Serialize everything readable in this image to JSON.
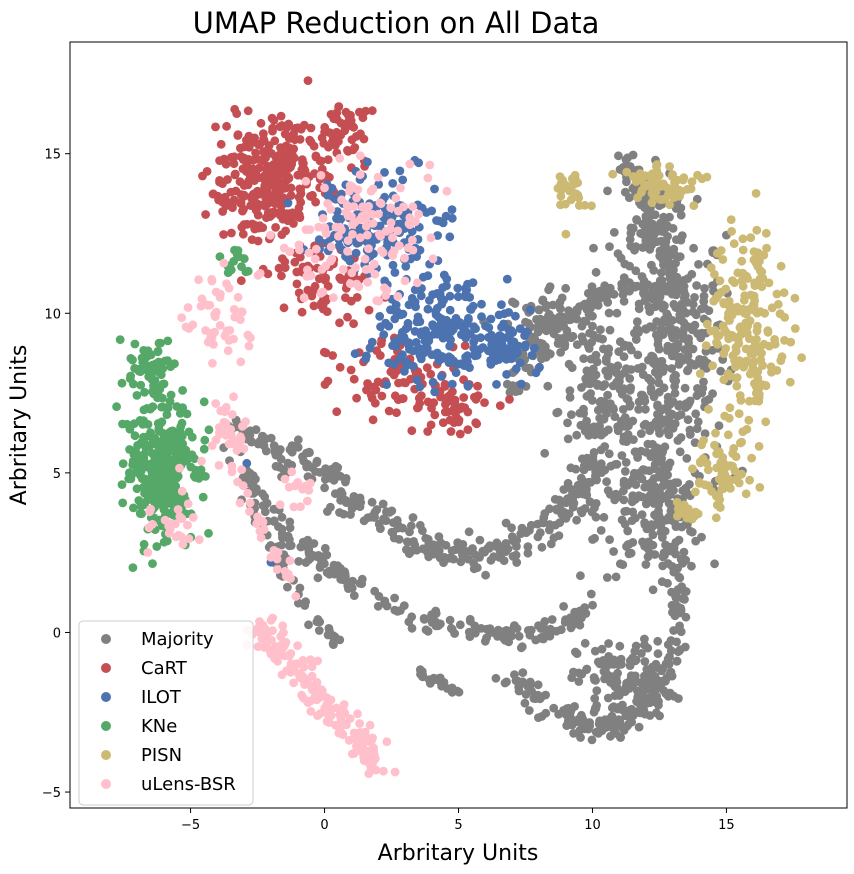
{
  "chart_data": {
    "type": "scatter",
    "title": "UMAP Reduction on All Data",
    "xlabel": "Arbritary Units",
    "ylabel": "Arbritary Units",
    "xlim": [
      -9.5,
      19.5
    ],
    "ylim": [
      -5.5,
      18.5
    ],
    "xticks": [
      -5,
      0,
      5,
      10,
      15
    ],
    "yticks": [
      -5,
      0,
      5,
      10,
      15
    ],
    "xtick_labels": [
      "−5",
      "0",
      "5",
      "10",
      "15"
    ],
    "ytick_labels": [
      "−5",
      "0",
      "5",
      "10",
      "15"
    ],
    "grid": false,
    "legend_position": "lower-left",
    "series": [
      {
        "name": "Majority",
        "color": "#808080",
        "clusters": [
          {
            "center": [
              13.2,
              9.0
            ],
            "spread": [
              1.6,
              3.6
            ],
            "count": 260
          },
          {
            "center": [
              10.4,
              7.0
            ],
            "spread": [
              1.5,
              2.8
            ],
            "count": 180
          },
          {
            "center": [
              12.2,
              4.0
            ],
            "spread": [
              1.8,
              2.0
            ],
            "count": 160
          },
          {
            "center": [
              8.5,
              9.6
            ],
            "spread": [
              1.6,
              1.2
            ],
            "count": 90
          },
          {
            "center": [
              12.0,
              13.0
            ],
            "spread": [
              1.0,
              1.4
            ],
            "count": 80
          },
          {
            "center": [
              11.2,
              -1.5
            ],
            "spread": [
              1.6,
              1.1
            ],
            "count": 120
          }
        ],
        "arcs": [
          {
            "points": [
              [
                -3.5,
                6.5
              ],
              [
                -1.5,
                5.6
              ],
              [
                1.0,
                4.2
              ],
              [
                3.5,
                2.7
              ],
              [
                6.0,
                2.4
              ],
              [
                8.5,
                3.5
              ],
              [
                10.2,
                5.0
              ]
            ],
            "width": 0.55,
            "count": 300
          },
          {
            "points": [
              [
                -3.0,
                5.0
              ],
              [
                -1.5,
                3.0
              ],
              [
                0.5,
                1.8
              ],
              [
                3.0,
                0.6
              ],
              [
                5.5,
                0.0
              ],
              [
                8.0,
                -0.1
              ],
              [
                10.0,
                0.7
              ]
            ],
            "width": 0.35,
            "count": 200
          },
          {
            "points": [
              [
                -2.8,
                4.0
              ],
              [
                -1.5,
                2.0
              ],
              [
                -0.5,
                0.4
              ],
              [
                0.5,
                -0.3
              ]
            ],
            "width": 0.25,
            "count": 50
          },
          {
            "points": [
              [
                3.5,
                -1.3
              ],
              [
                5.0,
                -1.8
              ]
            ],
            "width": 0.15,
            "count": 25
          },
          {
            "points": [
              [
                6.5,
                -1.2
              ],
              [
                8.5,
                -2.3
              ],
              [
                10.0,
                -3.0
              ],
              [
                11.5,
                -2.6
              ],
              [
                12.8,
                -1.5
              ],
              [
                13.3,
                0.5
              ],
              [
                13.0,
                3.0
              ],
              [
                12.5,
                5.0
              ],
              [
                12.5,
                8.0
              ],
              [
                13.0,
                11.0
              ],
              [
                12.0,
                13.5
              ],
              [
                11.2,
                15.0
              ]
            ],
            "width": 0.45,
            "count": 350
          },
          {
            "points": [
              [
                7.0,
                7.5
              ],
              [
                8.5,
                9.5
              ],
              [
                10.0,
                10.6
              ],
              [
                11.5,
                10.8
              ],
              [
                12.5,
                10.3
              ]
            ],
            "width": 0.35,
            "count": 100
          }
        ]
      },
      {
        "name": "CaRT",
        "color": "#c44e52",
        "clusters": [
          {
            "center": [
              -2.0,
              14.2
            ],
            "spread": [
              1.8,
              1.7
            ],
            "count": 300
          },
          {
            "center": [
              0.5,
              15.8
            ],
            "spread": [
              1.0,
              0.9
            ],
            "count": 50
          },
          {
            "center": [
              3.0,
              8.0
            ],
            "spread": [
              2.4,
              1.2
            ],
            "count": 90
          },
          {
            "center": [
              4.8,
              7.0
            ],
            "spread": [
              1.6,
              0.8
            ],
            "count": 40
          },
          {
            "center": [
              -0.2,
              11.2
            ],
            "spread": [
              1.6,
              1.2
            ],
            "count": 70
          }
        ]
      },
      {
        "name": "ILOT",
        "color": "#4c72b0",
        "clusters": [
          {
            "center": [
              2.0,
              12.8
            ],
            "spread": [
              2.2,
              1.3
            ],
            "count": 180
          },
          {
            "center": [
              4.2,
              9.5
            ],
            "spread": [
              2.1,
              1.5
            ],
            "count": 190
          },
          {
            "center": [
              6.6,
              9.0
            ],
            "spread": [
              1.0,
              0.8
            ],
            "count": 70
          }
        ],
        "points": [
          [
            -2.9,
            5.3
          ],
          [
            -2.0,
            2.2
          ]
        ]
      },
      {
        "name": "KNe",
        "color": "#55a868",
        "clusters": [
          {
            "center": [
              -6.0,
              5.0
            ],
            "spread": [
              1.1,
              1.9
            ],
            "count": 330
          },
          {
            "center": [
              -6.5,
              8.2
            ],
            "spread": [
              0.9,
              0.9
            ],
            "count": 60
          },
          {
            "center": [
              -3.2,
              11.6
            ],
            "spread": [
              0.5,
              0.4
            ],
            "count": 15
          }
        ]
      },
      {
        "name": "PISN",
        "color": "#ccb974",
        "clusters": [
          {
            "center": [
              15.8,
              9.5
            ],
            "spread": [
              1.3,
              2.9
            ],
            "count": 200
          },
          {
            "center": [
              14.8,
              5.0
            ],
            "spread": [
              0.9,
              1.0
            ],
            "count": 60
          },
          {
            "center": [
              13.5,
              3.8
            ],
            "spread": [
              0.5,
              0.4
            ],
            "count": 15
          },
          {
            "center": [
              12.5,
              14.0
            ],
            "spread": [
              1.2,
              0.6
            ],
            "count": 60
          },
          {
            "center": [
              9.2,
              13.8
            ],
            "spread": [
              0.6,
              0.5
            ],
            "count": 25
          }
        ]
      },
      {
        "name": "uLens-BSR",
        "color": "#ffc0cb",
        "clusters": [
          {
            "center": [
              1.5,
              12.5
            ],
            "spread": [
              2.2,
              1.8
            ],
            "count": 130
          },
          {
            "center": [
              -4.0,
              10.0
            ],
            "spread": [
              1.2,
              1.4
            ],
            "count": 50
          },
          {
            "center": [
              -3.6,
              6.0
            ],
            "spread": [
              0.6,
              1.0
            ],
            "count": 40
          },
          {
            "center": [
              -5.5,
              3.5
            ],
            "spread": [
              0.9,
              1.3
            ],
            "count": 25
          },
          {
            "center": [
              -1.0,
              4.5
            ],
            "spread": [
              0.6,
              0.6
            ],
            "count": 15
          }
        ],
        "arcs": [
          {
            "points": [
              [
                -2.5,
                0.2
              ],
              [
                -1.5,
                -0.6
              ],
              [
                -0.5,
                -1.7
              ],
              [
                0.5,
                -2.7
              ],
              [
                1.5,
                -3.6
              ],
              [
                2.0,
                -4.3
              ]
            ],
            "width": 0.55,
            "count": 170
          },
          {
            "points": [
              [
                -3.5,
                5.0
              ],
              [
                -2.5,
                3.5
              ],
              [
                -1.5,
                2.0
              ],
              [
                -1.0,
                0.8
              ]
            ],
            "width": 0.3,
            "count": 25
          }
        ]
      }
    ]
  }
}
